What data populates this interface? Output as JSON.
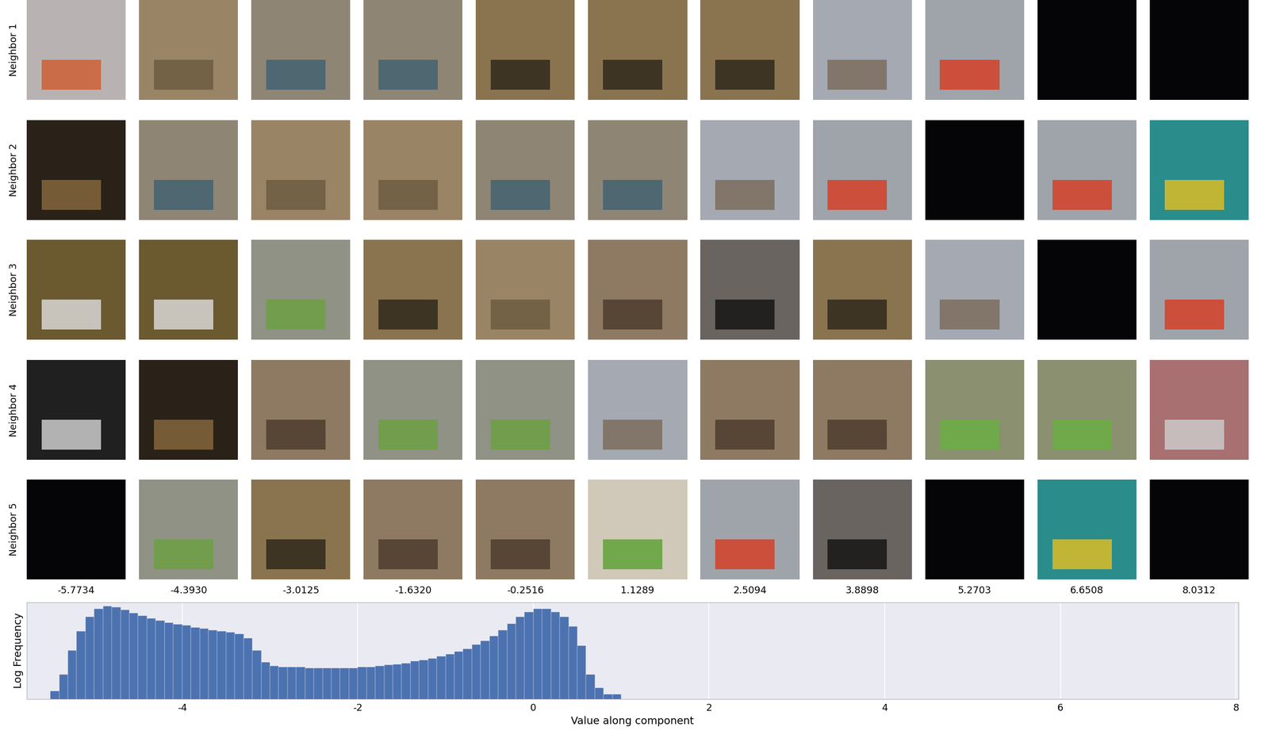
{
  "row_labels": [
    "Neighbor 1",
    "Neighbor 2",
    "Neighbor 3",
    "Neighbor 4",
    "Neighbor 5"
  ],
  "column_labels": [
    "-5.7734",
    "-4.3930",
    "-3.0125",
    "-1.6320",
    "-0.2516",
    "1.1289",
    "2.5094",
    "3.8898",
    "5.2703",
    "6.6508",
    "8.0312"
  ],
  "chart_data": {
    "type": "histogram",
    "x_label": "Value along component",
    "y_label": "Log Frequency",
    "bins": [
      -5.6,
      -5.5,
      -5.4,
      -5.3,
      -5.2,
      -5.1,
      -5.0,
      -4.9,
      -4.8,
      -4.7,
      -4.6,
      -4.5,
      -4.4,
      -4.3,
      -4.2,
      -4.1,
      -4.0,
      -3.9,
      -3.8,
      -3.7,
      -3.6,
      -3.5,
      -3.4,
      -3.3,
      -3.2,
      -3.1,
      -3.0,
      -2.9,
      -2.8,
      -2.7,
      -2.6,
      -2.5,
      -2.4,
      -2.3,
      -2.2,
      -2.1,
      -2.0,
      -1.9,
      -1.8,
      -1.7,
      -1.6,
      -1.5,
      -1.4,
      -1.3,
      -1.2,
      -1.1,
      -1.0,
      -0.9,
      -0.8,
      -0.7,
      -0.6,
      -0.5,
      -0.4,
      -0.3,
      -0.2,
      -0.1,
      0.0,
      0.1,
      0.2,
      0.3,
      0.4,
      0.5,
      0.6,
      0.7,
      0.8,
      0.9,
      1.0,
      1.1,
      1.2
    ],
    "counts": [
      1,
      3,
      32,
      1000,
      15800,
      126000,
      380000,
      575000,
      501000,
      331000,
      219000,
      145000,
      95500,
      72400,
      55000,
      41700,
      36300,
      27500,
      24000,
      18200,
      15800,
      13800,
      10500,
      6030,
      1000,
      191,
      110,
      95,
      95,
      95,
      83,
      83,
      83,
      83,
      83,
      83,
      95,
      95,
      110,
      126,
      145,
      166,
      219,
      251,
      331,
      437,
      575,
      871,
      1318,
      2291,
      3981,
      7943,
      18200,
      47900,
      126000,
      251000,
      380000,
      380000,
      251000,
      126000,
      31600,
      1995,
      32,
      5,
      2,
      2,
      1,
      1
    ],
    "xlim": [
      -5.77,
      8.03
    ],
    "xticks": [
      -4,
      -2,
      0,
      2,
      4,
      6,
      8
    ],
    "ylim": [
      1,
      1000000
    ],
    "log": "y",
    "grid": true,
    "tick_labels": "x",
    "color": "#4c72b0"
  }
}
